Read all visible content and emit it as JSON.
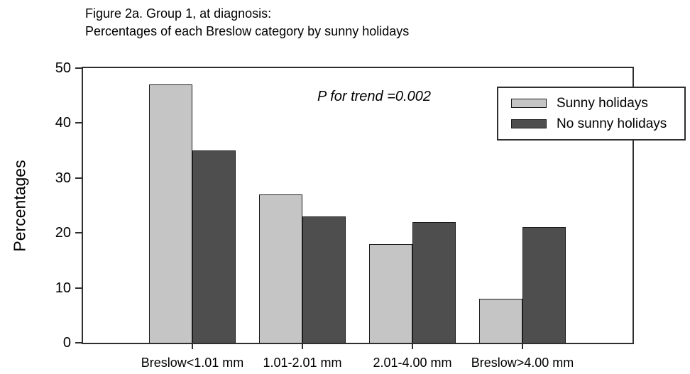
{
  "figure": {
    "title_line1": "Figure 2a. Group 1, at diagnosis:",
    "title_line2": "Percentages of each Breslow category by sunny holidays"
  },
  "chart_data": {
    "type": "bar",
    "title": "Figure 2a. Group 1, at diagnosis: Percentages of each Breslow category by sunny holidays",
    "categories": [
      "Breslow<1.01 mm",
      "1.01-2.01 mm",
      "2.01-4.00 mm",
      "Breslow>4.00 mm"
    ],
    "series": [
      {
        "name": "Sunny holidays",
        "color": "#c5c5c5",
        "values": [
          47,
          27,
          18,
          8
        ]
      },
      {
        "name": "No sunny holidays",
        "color": "#4e4e4e",
        "values": [
          35,
          23,
          22,
          21
        ]
      }
    ],
    "xlabel": "",
    "ylabel": "Percentages",
    "ylim": [
      0,
      50
    ],
    "yticks": [
      0,
      10,
      20,
      30,
      40,
      50
    ],
    "annotation": "P for trend =0.002",
    "legend_position": "upper right",
    "grid": false,
    "bar_outline_color": "#1c1c1c",
    "axis_color": "#2e2e2e",
    "background_color": "#ffffff"
  }
}
